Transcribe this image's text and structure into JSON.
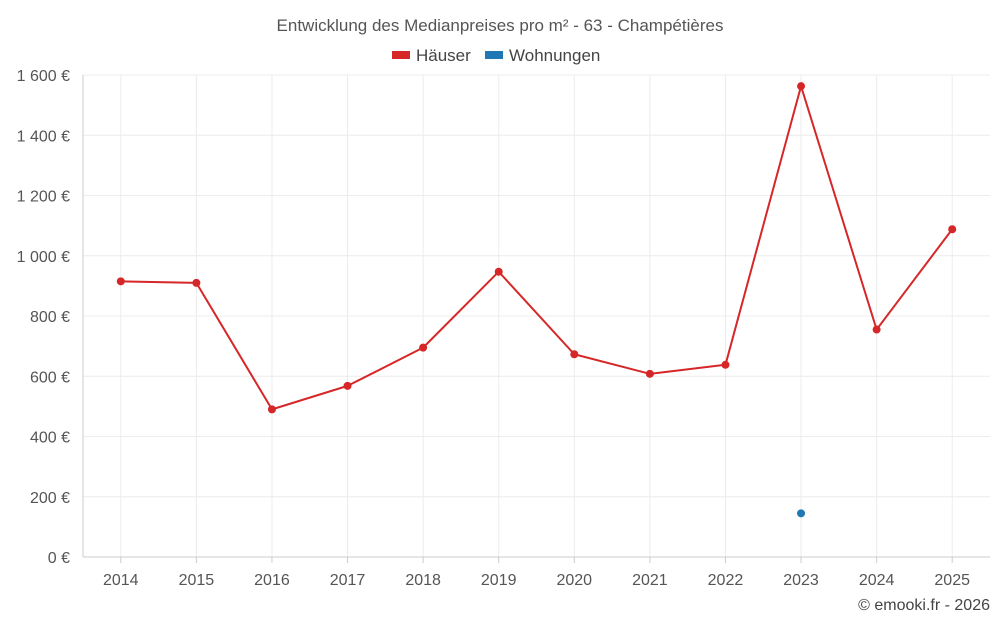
{
  "chart_data": {
    "type": "line",
    "title": "Entwicklung des Medianpreises pro m² - 63 - Champétières",
    "categories": [
      "2014",
      "2015",
      "2016",
      "2017",
      "2018",
      "2019",
      "2020",
      "2021",
      "2022",
      "2023",
      "2024",
      "2025"
    ],
    "series": [
      {
        "name": "Häuser",
        "color": "#d62728",
        "values": [
          915,
          910,
          490,
          568,
          695,
          947,
          673,
          608,
          638,
          1563,
          755,
          1088
        ]
      },
      {
        "name": "Wohnungen",
        "color": "#1f77b4",
        "values": [
          null,
          null,
          null,
          null,
          null,
          null,
          null,
          null,
          null,
          145,
          null,
          null
        ]
      }
    ],
    "ylim": [
      0,
      1600
    ],
    "yticks": [
      0,
      200,
      400,
      600,
      800,
      1000,
      1200,
      1400,
      1600
    ],
    "ytick_labels": [
      "0 €",
      "200 €",
      "400 €",
      "600 €",
      "800 €",
      "1 000 €",
      "1 200 €",
      "1 400 €",
      "1 600 €"
    ],
    "grid": true,
    "legend_position": "top-center",
    "xlabel": "",
    "ylabel": ""
  },
  "credit": "© emooki.fr - 2026"
}
